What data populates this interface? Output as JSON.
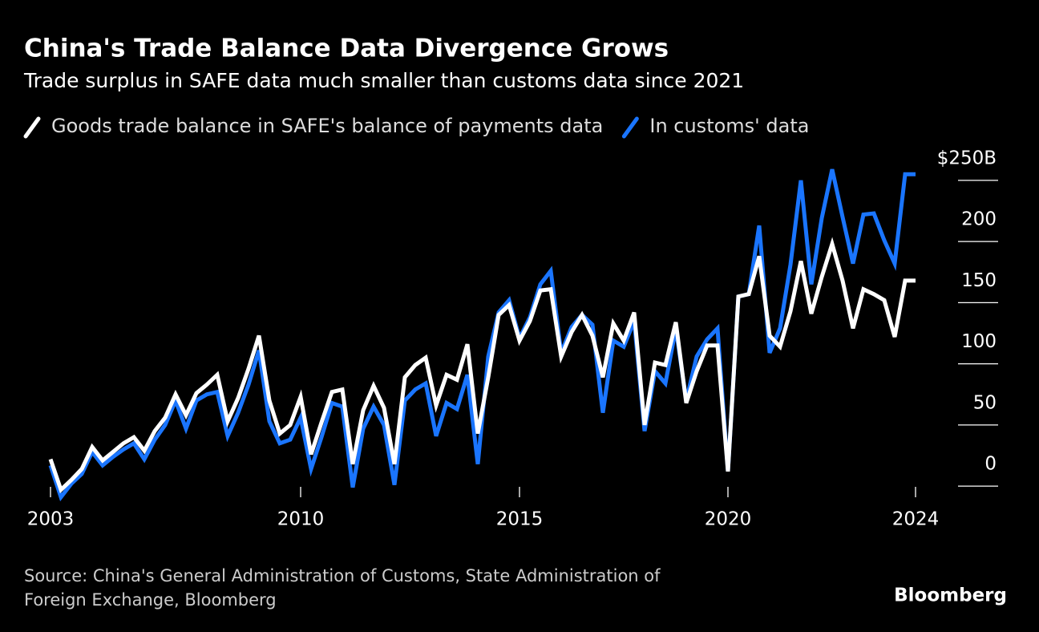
{
  "chart_data": {
    "type": "line",
    "title": "China's Trade Balance Data Divergence Grows",
    "subtitle": "Trade surplus in SAFE data much smaller than customs data since 2021",
    "categories": [
      "2003",
      null,
      null,
      null,
      null,
      null,
      null,
      null,
      null,
      null,
      null,
      null,
      null,
      null,
      null,
      null,
      null,
      null,
      null,
      null,
      null,
      null,
      null,
      null,
      "2010",
      null,
      null,
      null,
      null,
      null,
      null,
      null,
      null,
      null,
      null,
      null,
      null,
      null,
      null,
      null,
      null,
      null,
      null,
      null,
      null,
      "2015",
      null,
      null,
      null,
      null,
      null,
      null,
      null,
      null,
      null,
      null,
      null,
      null,
      null,
      null,
      null,
      null,
      null,
      null,
      null,
      "2020",
      null,
      null,
      null,
      null,
      null,
      null,
      null,
      null,
      null,
      null,
      null,
      null,
      null,
      null,
      null,
      null,
      null,
      "2024"
    ],
    "series": [
      {
        "name": "Goods trade balance in SAFE's balance of payments data",
        "color": "#ffffff",
        "values": [
          22,
          -3,
          5,
          14,
          32,
          21,
          28,
          35,
          40,
          29,
          45,
          56,
          75,
          58,
          76,
          83,
          91,
          53,
          72,
          96,
          123,
          70,
          43,
          50,
          73,
          26,
          52,
          77,
          79,
          18,
          62,
          82,
          64,
          18,
          89,
          99,
          105,
          66,
          91,
          87,
          116,
          43,
          89,
          140,
          148,
          119,
          135,
          160,
          161,
          106,
          126,
          140,
          123,
          89,
          133,
          119,
          142,
          50,
          101,
          99,
          134,
          68,
          94,
          115,
          115,
          12,
          155,
          157,
          188,
          123,
          114,
          143,
          184,
          141,
          171,
          198,
          168,
          129,
          161,
          157,
          152,
          122,
          168,
          168
        ]
      },
      {
        "name": "In customs' data",
        "color": "#1a75ff",
        "values": [
          17,
          -9,
          2,
          10,
          28,
          17,
          24,
          30,
          35,
          22,
          38,
          50,
          70,
          47,
          70,
          75,
          77,
          41,
          60,
          83,
          111,
          53,
          35,
          38,
          56,
          14,
          40,
          68,
          65,
          -1,
          47,
          65,
          50,
          1,
          70,
          79,
          84,
          41,
          68,
          63,
          91,
          18,
          106,
          142,
          152,
          121,
          138,
          165,
          176,
          109,
          130,
          140,
          132,
          60,
          119,
          114,
          135,
          45,
          94,
          84,
          129,
          70,
          106,
          120,
          129,
          12,
          155,
          157,
          213,
          109,
          129,
          181,
          250,
          165,
          219,
          259,
          220,
          182,
          222,
          223,
          201,
          182,
          255,
          255
        ]
      }
    ],
    "ylim": [
      -15,
      265
    ],
    "yticks": [
      0,
      50,
      100,
      150,
      200,
      {
        "value": 250,
        "label": "$250B"
      }
    ],
    "source": [
      "Source: China's General Administration of Customs, State Administration of",
      "Foreign Exchange, Bloomberg"
    ],
    "brand": "Bloomberg"
  }
}
